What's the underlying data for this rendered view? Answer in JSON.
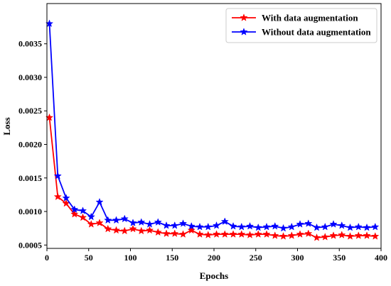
{
  "chart_data": {
    "type": "line",
    "title": "",
    "xlabel": "Epochs",
    "ylabel": "Loss",
    "xlim": [
      0,
      400
    ],
    "ylim": [
      0.00045,
      0.0041
    ],
    "x_ticks": [
      0,
      50,
      100,
      150,
      200,
      250,
      300,
      350,
      400
    ],
    "x_tick_labels": [
      "0",
      "50",
      "100",
      "150",
      "200",
      "250",
      "300",
      "350",
      "400"
    ],
    "y_ticks": [
      0.0005,
      0.001,
      0.0015,
      0.002,
      0.0025,
      0.003,
      0.0035
    ],
    "y_tick_labels": [
      "0.0005",
      "0.0010",
      "0.0015",
      "0.0020",
      "0.0025",
      "0.0030",
      "0.0035"
    ],
    "grid": false,
    "legend_position": "top-right",
    "x": [
      3,
      13,
      23,
      33,
      43,
      53,
      63,
      73,
      83,
      93,
      103,
      113,
      123,
      133,
      143,
      153,
      163,
      173,
      183,
      193,
      203,
      213,
      223,
      233,
      243,
      253,
      263,
      273,
      283,
      293,
      303,
      313,
      323,
      333,
      343,
      353,
      363,
      373,
      383,
      393
    ],
    "series": [
      {
        "name": "With data augmentation",
        "color": "#ff0000",
        "marker": "star",
        "values": [
          0.0024,
          0.00122,
          0.00112,
          0.00096,
          0.00091,
          0.00081,
          0.00083,
          0.00074,
          0.00072,
          0.00071,
          0.00074,
          0.00071,
          0.00072,
          0.00069,
          0.00067,
          0.00067,
          0.00066,
          0.00072,
          0.00066,
          0.00065,
          0.00066,
          0.00066,
          0.00066,
          0.00066,
          0.00065,
          0.00066,
          0.00066,
          0.00064,
          0.00063,
          0.00064,
          0.00066,
          0.00067,
          0.00061,
          0.00062,
          0.00064,
          0.00065,
          0.00063,
          0.00064,
          0.00064,
          0.00063
        ]
      },
      {
        "name": "Without data augmentation",
        "color": "#0000ff",
        "marker": "star",
        "values": [
          0.0038,
          0.00153,
          0.0012,
          0.00103,
          0.00101,
          0.00092,
          0.00114,
          0.00087,
          0.00087,
          0.00089,
          0.00083,
          0.00084,
          0.00081,
          0.00084,
          0.00079,
          0.00079,
          0.00082,
          0.00078,
          0.00077,
          0.00077,
          0.00079,
          0.00085,
          0.00078,
          0.00077,
          0.00078,
          0.00076,
          0.00077,
          0.00078,
          0.00075,
          0.00077,
          0.00081,
          0.00082,
          0.00076,
          0.00077,
          0.00081,
          0.00079,
          0.00076,
          0.00077,
          0.00076,
          0.00077
        ]
      }
    ]
  }
}
